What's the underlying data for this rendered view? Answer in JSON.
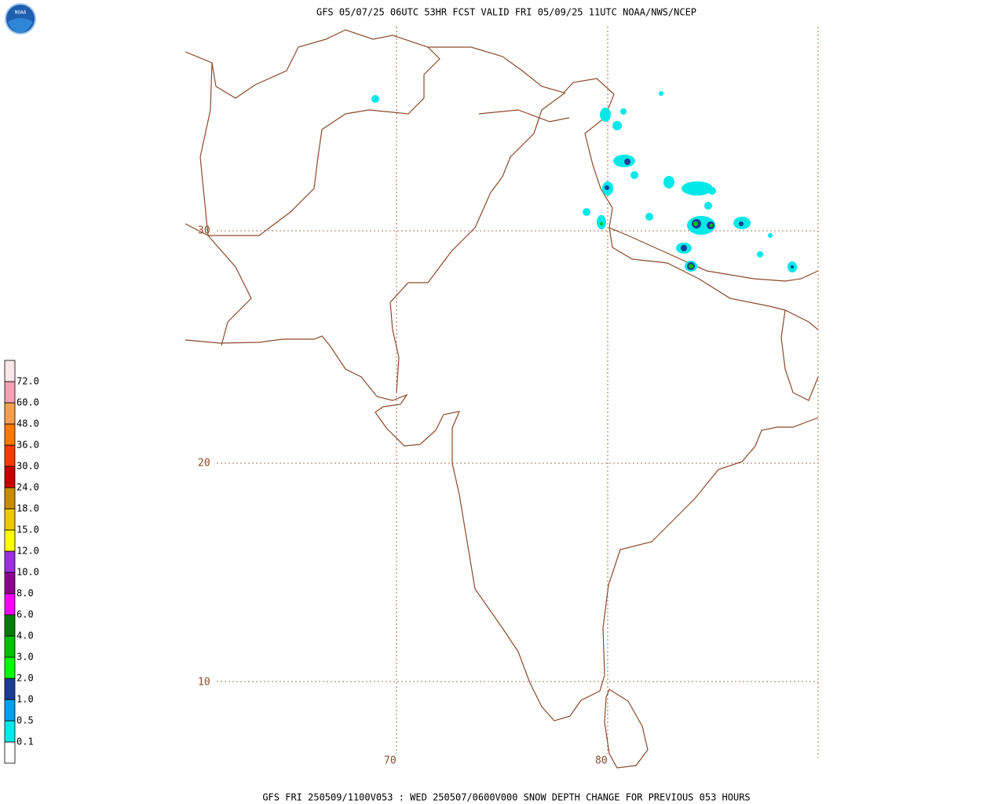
{
  "header": {
    "title": "GFS 05/07/25 06UTC 53HR FCST VALID FRI 05/09/25 11UTC NOAA/NWS/NCEP"
  },
  "footer": {
    "text": "GFS FRI 250509/1100V053 : WED 250507/0600V000 SNOW DEPTH CHANGE FOR PREVIOUS 053 HOURS"
  },
  "map": {
    "latitude_labels": [
      "30",
      "20",
      "10"
    ],
    "longitude_labels": [
      "70",
      "80"
    ]
  },
  "legend": {
    "labels": [
      "0.1",
      "0.5",
      "1.0",
      "2.0",
      "3.0",
      "4.0",
      "6.0",
      "8.0",
      "10.0",
      "12.0",
      "15.0",
      "18.0",
      "24.0",
      "30.0",
      "36.0",
      "48.0",
      "60.0",
      "72.0"
    ],
    "colors": [
      "#ffffff",
      "#00e8e8",
      "#00a0f0",
      "#1c3c94",
      "#00ff00",
      "#00c000",
      "#007a00",
      "#ff00ff",
      "#8b008b",
      "#9a30e0",
      "#ffff00",
      "#f0c800",
      "#c88c00",
      "#c80000",
      "#f03c00",
      "#ff7800",
      "#f5a050",
      "#f5a0b4",
      "#fde6ea"
    ]
  }
}
